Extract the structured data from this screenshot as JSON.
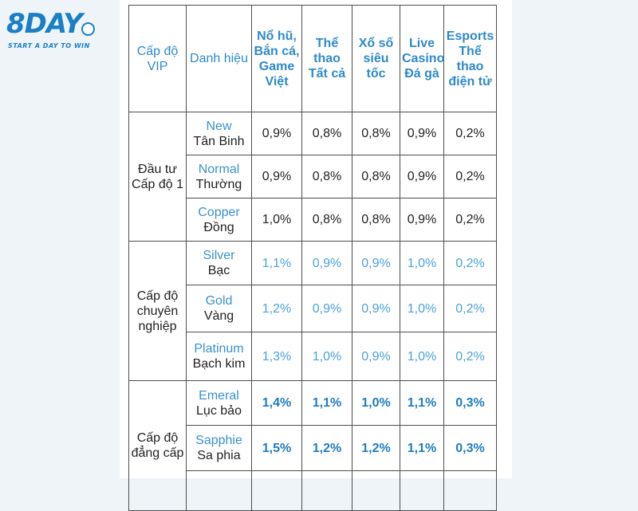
{
  "logo": {
    "brand": "8DAY",
    "tagline": "START A DAY TO WIN"
  },
  "headers": [
    "Cấp độ VIP",
    "Danh hiệu",
    "Nổ hũ, Bắn cá, Game Việt",
    "Thể thao Tất cả",
    "Xổ số siêu tốc",
    "Live Casino Đá gà",
    "Esports Thể thao điện tử"
  ],
  "groups": [
    {
      "level": "Đầu tư Cấp độ 1",
      "rows": [
        {
          "en": "New",
          "vn": "Tân Binh",
          "values": [
            "0,9%",
            "0,8%",
            "0,8%",
            "0,9%",
            "0,2%"
          ]
        },
        {
          "en": "Normal",
          "vn": "Thường",
          "values": [
            "0,9%",
            "0,8%",
            "0,8%",
            "0,9%",
            "0,2%"
          ]
        },
        {
          "en": "Copper",
          "vn": "Đồng",
          "values": [
            "1,0%",
            "0,8%",
            "0,8%",
            "0,9%",
            "0,2%"
          ]
        }
      ]
    },
    {
      "level": "Cấp độ chuyên nghiệp",
      "rows": [
        {
          "en": "Silver",
          "vn": "Bạc",
          "values": [
            "1,1%",
            "0,9%",
            "0,9%",
            "1,0%",
            "0,2%"
          ]
        },
        {
          "en": "Gold",
          "vn": "Vàng",
          "values": [
            "1,2%",
            "0,9%",
            "0,9%",
            "1,0%",
            "0,2%"
          ]
        },
        {
          "en": "Platinum",
          "vn": "Bạch kim",
          "values": [
            "1,3%",
            "1,0%",
            "0,9%",
            "1,0%",
            "0,2%"
          ]
        }
      ]
    },
    {
      "level": "Cấp độ đẳng cấp",
      "rows": [
        {
          "en": "Emeral",
          "vn": "Lục bảo",
          "values": [
            "1,4%",
            "1,1%",
            "1,0%",
            "1,1%",
            "0,3%"
          ]
        },
        {
          "en": "Sapphie",
          "vn": "Sa phia",
          "values": [
            "1,5%",
            "1,2%",
            "1,2%",
            "1,1%",
            "0,3%"
          ]
        }
      ]
    }
  ]
}
